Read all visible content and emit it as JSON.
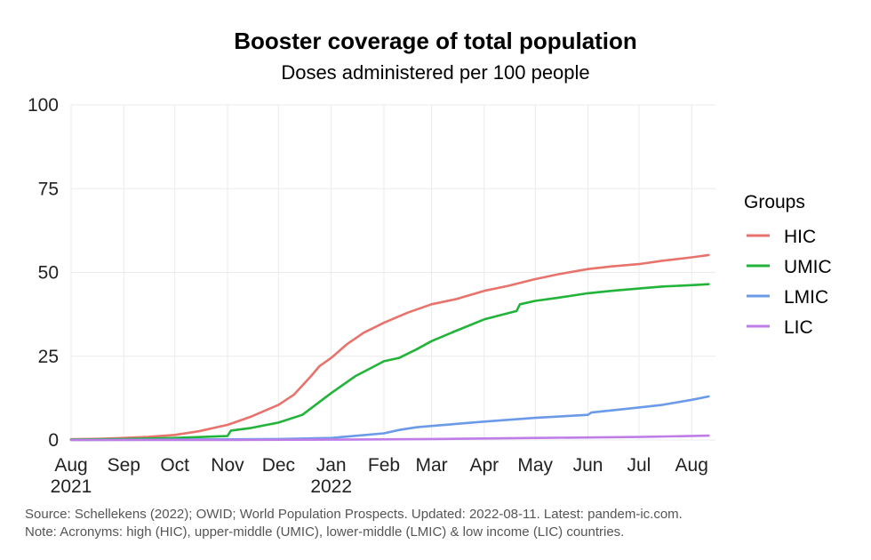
{
  "chart_data": {
    "type": "line",
    "title": "Booster coverage of total population",
    "subtitle": "Doses administered per 100 people",
    "xlabel": "",
    "ylabel": "",
    "ylim": [
      0,
      100
    ],
    "yticks": [
      0,
      25,
      50,
      75,
      100
    ],
    "xlim": [
      "2021-08-01",
      "2022-08-15"
    ],
    "xticks": [
      {
        "date": "2021-08-01",
        "label": "Aug",
        "label2": "2021"
      },
      {
        "date": "2021-09-01",
        "label": "Sep",
        "label2": ""
      },
      {
        "date": "2021-10-01",
        "label": "Oct",
        "label2": ""
      },
      {
        "date": "2021-11-01",
        "label": "Nov",
        "label2": ""
      },
      {
        "date": "2021-12-01",
        "label": "Dec",
        "label2": ""
      },
      {
        "date": "2022-01-01",
        "label": "Jan",
        "label2": "2022"
      },
      {
        "date": "2022-02-01",
        "label": "Feb",
        "label2": ""
      },
      {
        "date": "2022-03-01",
        "label": "Mar",
        "label2": ""
      },
      {
        "date": "2022-04-01",
        "label": "Apr",
        "label2": ""
      },
      {
        "date": "2022-05-01",
        "label": "May",
        "label2": ""
      },
      {
        "date": "2022-06-01",
        "label": "Jun",
        "label2": ""
      },
      {
        "date": "2022-07-01",
        "label": "Jul",
        "label2": ""
      },
      {
        "date": "2022-08-01",
        "label": "Aug",
        "label2": ""
      }
    ],
    "grid": true,
    "legend": {
      "title": "Groups",
      "placement": "right"
    },
    "series": [
      {
        "name": "HIC",
        "color": "#e8736c",
        "points": [
          [
            "2021-08-01",
            0.2
          ],
          [
            "2021-08-20",
            0.4
          ],
          [
            "2021-09-01",
            0.6
          ],
          [
            "2021-09-15",
            0.9
          ],
          [
            "2021-10-01",
            1.5
          ],
          [
            "2021-10-15",
            2.6
          ],
          [
            "2021-11-01",
            4.5
          ],
          [
            "2021-11-15",
            7.0
          ],
          [
            "2021-12-01",
            10.5
          ],
          [
            "2021-12-10",
            13.5
          ],
          [
            "2021-12-20",
            19.0
          ],
          [
            "2021-12-25",
            22.0
          ],
          [
            "2022-01-01",
            24.5
          ],
          [
            "2022-01-10",
            28.5
          ],
          [
            "2022-01-20",
            32.0
          ],
          [
            "2022-02-01",
            35.0
          ],
          [
            "2022-02-15",
            38.0
          ],
          [
            "2022-03-01",
            40.5
          ],
          [
            "2022-03-15",
            42.0
          ],
          [
            "2022-04-01",
            44.5
          ],
          [
            "2022-04-15",
            46.0
          ],
          [
            "2022-05-01",
            48.0
          ],
          [
            "2022-05-15",
            49.5
          ],
          [
            "2022-06-01",
            51.0
          ],
          [
            "2022-06-15",
            51.8
          ],
          [
            "2022-07-01",
            52.5
          ],
          [
            "2022-07-15",
            53.5
          ],
          [
            "2022-08-01",
            54.5
          ],
          [
            "2022-08-11",
            55.2
          ]
        ]
      },
      {
        "name": "UMIC",
        "color": "#22b43a",
        "points": [
          [
            "2021-08-01",
            0.1
          ],
          [
            "2021-09-01",
            0.3
          ],
          [
            "2021-10-01",
            0.6
          ],
          [
            "2021-11-01",
            1.2
          ],
          [
            "2021-11-03",
            2.8
          ],
          [
            "2021-11-15",
            3.6
          ],
          [
            "2021-12-01",
            5.2
          ],
          [
            "2021-12-15",
            7.5
          ],
          [
            "2022-01-01",
            14.0
          ],
          [
            "2022-01-15",
            19.0
          ],
          [
            "2022-02-01",
            23.5
          ],
          [
            "2022-02-10",
            24.5
          ],
          [
            "2022-02-20",
            27.0
          ],
          [
            "2022-03-01",
            29.5
          ],
          [
            "2022-03-15",
            32.5
          ],
          [
            "2022-04-01",
            36.0
          ],
          [
            "2022-04-20",
            38.5
          ],
          [
            "2022-04-22",
            40.5
          ],
          [
            "2022-05-01",
            41.5
          ],
          [
            "2022-05-15",
            42.5
          ],
          [
            "2022-06-01",
            43.8
          ],
          [
            "2022-06-15",
            44.5
          ],
          [
            "2022-07-01",
            45.2
          ],
          [
            "2022-07-15",
            45.8
          ],
          [
            "2022-08-01",
            46.2
          ],
          [
            "2022-08-11",
            46.5
          ]
        ]
      },
      {
        "name": "LMIC",
        "color": "#6b9be8",
        "points": [
          [
            "2021-08-01",
            0.0
          ],
          [
            "2021-10-01",
            0.1
          ],
          [
            "2021-12-01",
            0.3
          ],
          [
            "2022-01-01",
            0.6
          ],
          [
            "2022-01-10",
            1.0
          ],
          [
            "2022-02-01",
            2.0
          ],
          [
            "2022-02-10",
            3.0
          ],
          [
            "2022-02-20",
            3.8
          ],
          [
            "2022-03-01",
            4.2
          ],
          [
            "2022-04-01",
            5.5
          ],
          [
            "2022-05-01",
            6.6
          ],
          [
            "2022-06-01",
            7.5
          ],
          [
            "2022-06-03",
            8.2
          ],
          [
            "2022-07-01",
            9.7
          ],
          [
            "2022-07-15",
            10.5
          ],
          [
            "2022-08-01",
            12.0
          ],
          [
            "2022-08-11",
            13.0
          ]
        ]
      },
      {
        "name": "LIC",
        "color": "#bf7de8",
        "points": [
          [
            "2021-08-01",
            0.0
          ],
          [
            "2021-11-01",
            0.0
          ],
          [
            "2022-01-01",
            0.1
          ],
          [
            "2022-03-01",
            0.3
          ],
          [
            "2022-05-01",
            0.6
          ],
          [
            "2022-07-01",
            0.9
          ],
          [
            "2022-08-11",
            1.3
          ]
        ]
      }
    ]
  },
  "notes": [
    "Source: Schellekens (2022); OWID; World Population Prospects. Updated: 2022-08-11. Latest: pandem-ic.com.",
    "Note: Acronyms: high (HIC), upper-middle (UMIC), lower-middle (LMIC) & low income (LIC) countries."
  ]
}
